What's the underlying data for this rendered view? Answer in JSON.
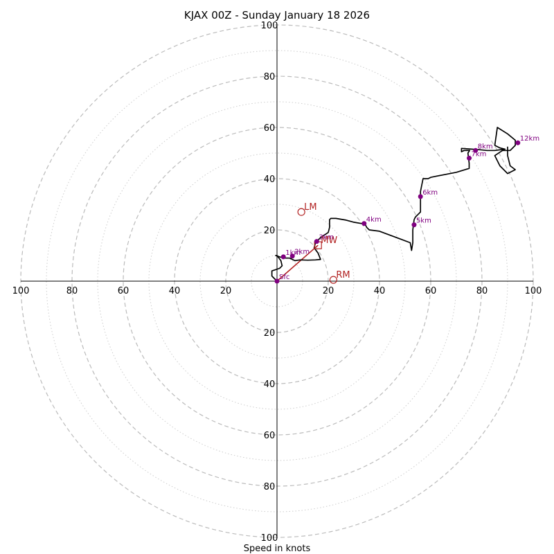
{
  "chart_data": {
    "type": "hodograph",
    "title": "KJAX 00Z - Sunday January 18 2026",
    "xlabel": "Speed in knots",
    "max_speed": 100,
    "major_rings": [
      20,
      40,
      60,
      80,
      100
    ],
    "minor_rings": [
      10,
      30,
      50,
      70,
      90
    ],
    "x_tick_labels": [
      "100",
      "80",
      "60",
      "40",
      "20",
      "20",
      "40",
      "60",
      "80",
      "100"
    ],
    "x_tick_values": [
      -100,
      -80,
      -60,
      -40,
      -20,
      20,
      40,
      60,
      80,
      100
    ],
    "y_tick_labels": [
      "100",
      "80",
      "60",
      "40",
      "20",
      "20",
      "40",
      "60",
      "80",
      "100"
    ],
    "y_tick_values": [
      100,
      80,
      60,
      40,
      20,
      -20,
      -40,
      -60,
      -80,
      -100
    ],
    "hodograph": [
      [
        0,
        0
      ],
      [
        -2,
        2
      ],
      [
        -2,
        4
      ],
      [
        1,
        5
      ],
      [
        2,
        6
      ],
      [
        1.5,
        8
      ],
      [
        0,
        10
      ],
      [
        -0.5,
        10
      ],
      [
        1,
        9.5
      ],
      [
        3,
        9
      ],
      [
        5,
        9
      ],
      [
        6,
        8.5
      ],
      [
        7,
        8
      ],
      [
        9,
        8.3
      ],
      [
        12,
        8.2
      ],
      [
        15,
        8.3
      ],
      [
        17,
        8.5
      ],
      [
        16,
        11
      ],
      [
        14.5,
        13
      ],
      [
        15,
        15
      ],
      [
        17,
        17
      ],
      [
        20,
        19
      ],
      [
        20.5,
        21
      ],
      [
        20.5,
        24
      ],
      [
        21,
        24.5
      ],
      [
        23,
        24.5
      ],
      [
        27,
        23.8
      ],
      [
        30,
        23
      ],
      [
        33,
        22.5
      ],
      [
        34,
        23
      ],
      [
        35,
        21
      ],
      [
        36,
        20
      ],
      [
        40,
        19.5
      ],
      [
        44,
        18
      ],
      [
        48,
        16.5
      ],
      [
        52,
        15
      ],
      [
        52.5,
        12
      ],
      [
        53,
        15
      ],
      [
        53,
        20
      ],
      [
        53.5,
        24
      ],
      [
        54,
        25
      ],
      [
        55,
        26
      ],
      [
        56,
        27
      ],
      [
        56,
        30
      ],
      [
        56,
        35
      ],
      [
        57,
        40
      ],
      [
        59,
        40
      ],
      [
        60,
        40.5
      ],
      [
        65,
        41.5
      ],
      [
        70,
        42.5
      ],
      [
        75,
        44
      ],
      [
        75,
        46
      ],
      [
        74.5,
        50
      ],
      [
        75.2,
        51
      ],
      [
        73,
        51
      ],
      [
        72,
        50.5
      ],
      [
        72,
        51.8
      ],
      [
        76,
        51.5
      ],
      [
        79,
        51.3
      ],
      [
        82,
        51
      ],
      [
        85,
        51
      ],
      [
        89,
        51.5
      ],
      [
        87,
        52
      ],
      [
        85,
        53
      ],
      [
        86,
        60
      ],
      [
        90,
        57.5
      ],
      [
        93,
        55
      ],
      [
        93,
        53
      ],
      [
        91,
        51
      ],
      [
        88,
        51
      ],
      [
        85,
        49
      ],
      [
        86,
        47
      ],
      [
        87,
        45
      ],
      [
        90,
        42
      ],
      [
        93,
        43.5
      ],
      [
        91,
        45
      ],
      [
        90,
        49
      ],
      [
        90,
        52.5
      ]
    ],
    "height_markers": [
      {
        "label": "Sfc",
        "u": 0,
        "v": 0
      },
      {
        "label": "1km",
        "u": 2.5,
        "v": 9.5
      },
      {
        "label": "2km",
        "u": 6,
        "v": 9.8
      },
      {
        "label": "3km",
        "u": 15.5,
        "v": 15.5
      },
      {
        "label": "4km",
        "u": 34,
        "v": 22.5
      },
      {
        "label": "5km",
        "u": 53.5,
        "v": 22
      },
      {
        "label": "6km",
        "u": 56,
        "v": 33
      },
      {
        "label": "7km",
        "u": 75,
        "v": 48
      },
      {
        "label": "8km",
        "u": 77.5,
        "v": 51
      },
      {
        "label": "12km",
        "u": 94,
        "v": 54
      }
    ],
    "storm_motion": [
      {
        "label": "LM",
        "u": 9.5,
        "v": 27
      },
      {
        "label": "RM",
        "u": 22,
        "v": 0.5
      },
      {
        "label": "MW",
        "u": 16,
        "v": 14
      }
    ],
    "mean_wind_vector": {
      "from": [
        0,
        0
      ],
      "to": [
        16,
        14
      ]
    },
    "colors": {
      "hodograph": "#000000",
      "marker": "#800080",
      "storm": "#b22222",
      "ring": "#bbbbbb"
    }
  }
}
